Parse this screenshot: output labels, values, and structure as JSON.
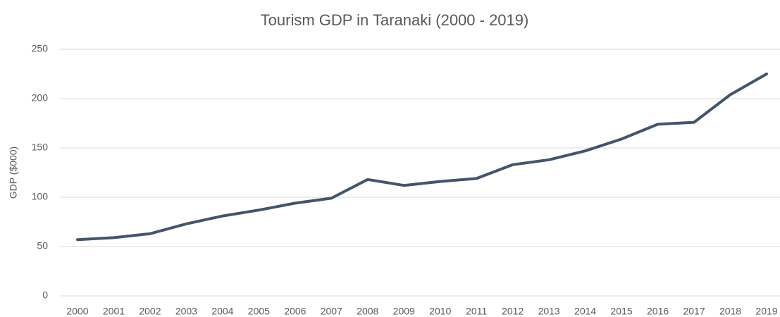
{
  "chart_data": {
    "type": "line",
    "title": "Tourism GDP in Taranaki (2000 - 2019)",
    "y_label": "GDP ($000)",
    "categories": [
      "2000",
      "2001",
      "2002",
      "2003",
      "2004",
      "2005",
      "2006",
      "2007",
      "2008",
      "2009",
      "2010",
      "2011",
      "2012",
      "2013",
      "2014",
      "2015",
      "2016",
      "2017",
      "2018",
      "2019"
    ],
    "values": [
      57,
      59,
      63,
      73,
      81,
      87,
      94,
      99,
      118,
      112,
      116,
      119,
      133,
      138,
      147,
      159,
      174,
      176,
      204,
      225
    ],
    "color": "#44546a",
    "ylim": [
      0,
      250
    ],
    "yticks": [
      0,
      50,
      100,
      150,
      200,
      250
    ],
    "grid": true
  }
}
